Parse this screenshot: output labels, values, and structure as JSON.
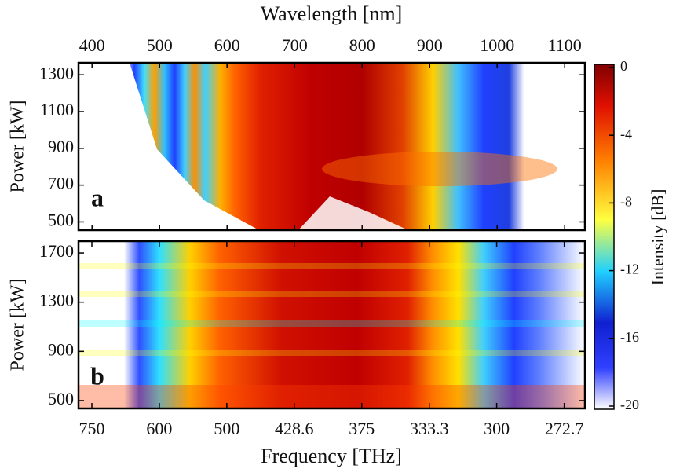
{
  "chart_data": [
    {
      "type": "heatmap",
      "panel_label": "a",
      "xlabel": "Wavelength [nm]",
      "xlim": [
        380,
        1130
      ],
      "xticks": [
        400,
        500,
        600,
        700,
        800,
        900,
        1000,
        1100
      ],
      "ylabel": "Power [kW]",
      "ylim": [
        455,
        1365
      ],
      "yticks": [
        500,
        700,
        900,
        1100,
        1300
      ],
      "colorbar": {
        "label": "Intensity [dB]",
        "lim": [
          -20,
          0
        ],
        "ticks": [
          0,
          -4,
          -8,
          -12,
          -16,
          -20
        ]
      }
    },
    {
      "type": "heatmap",
      "panel_label": "b",
      "xlabel": "Frequency [THz]",
      "xscale": "reciprocal",
      "xlim": [
        789,
        265.3
      ],
      "xticks": [
        750,
        600,
        500,
        428.6,
        375,
        333.3,
        300,
        272.7
      ],
      "ylabel": "Power [kW]",
      "ylim": [
        436,
        1796
      ],
      "yticks": [
        500,
        900,
        1300,
        1700
      ]
    }
  ]
}
